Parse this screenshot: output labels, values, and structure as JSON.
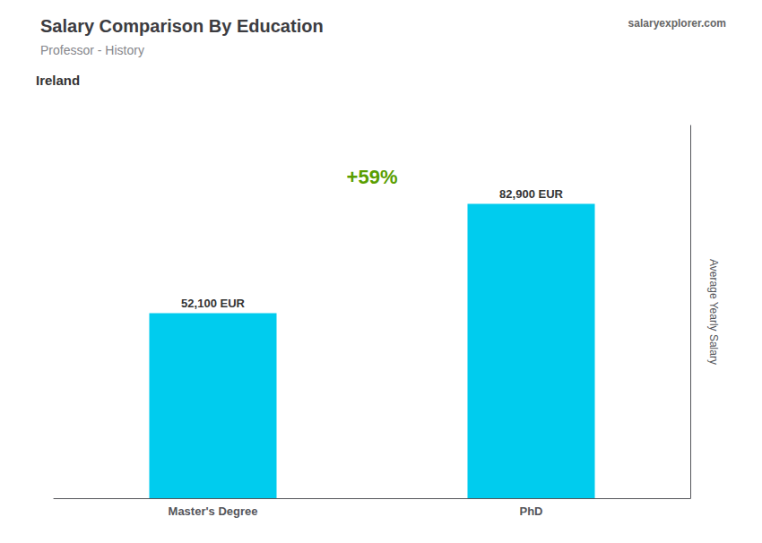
{
  "chart_data": {
    "type": "bar",
    "title": "Salary Comparison By Education",
    "subtitle": "Professor - History",
    "annotations": [
      "Ireland",
      "salaryexplorer.com",
      "+59%"
    ],
    "ylabel": "Average Yearly Salary",
    "categories": [
      "Master's Degree",
      "PhD"
    ],
    "values": [
      52100,
      82900
    ],
    "value_labels": [
      "52,100 EUR",
      "82,900 EUR"
    ],
    "data_labels": true,
    "color": "#00CCEE",
    "ylim": [
      0,
      105000
    ],
    "tick_labels": "x",
    "grid": false
  }
}
